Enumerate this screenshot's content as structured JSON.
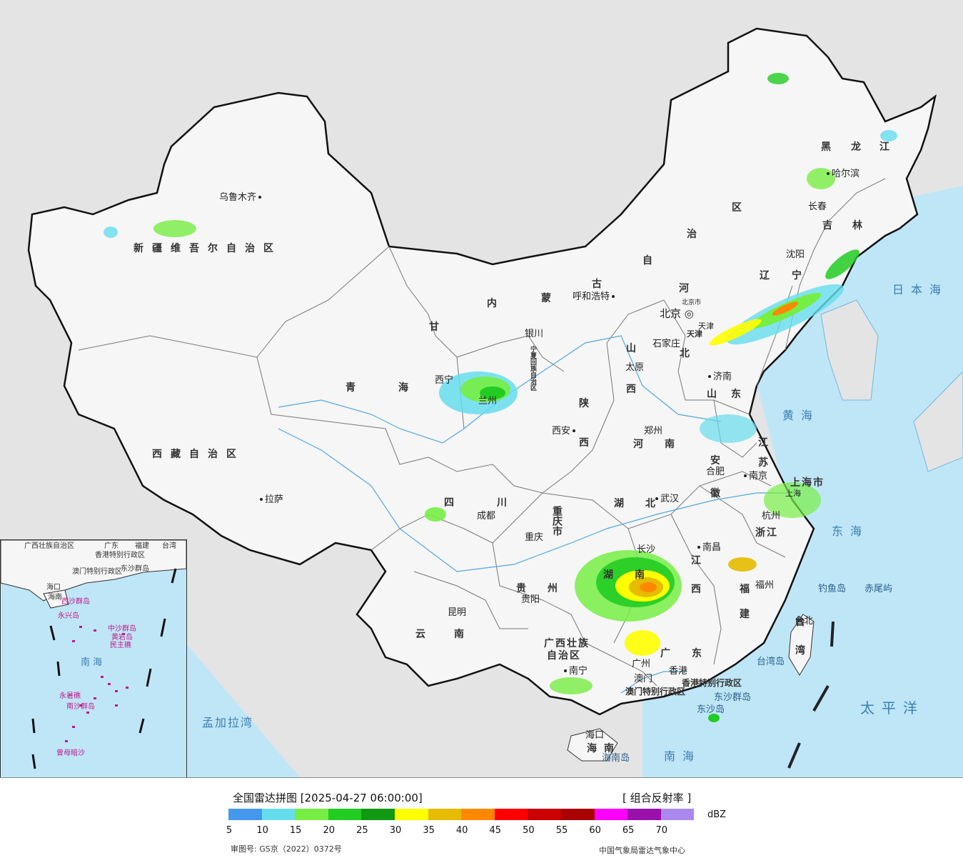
{
  "map": {
    "cities": [
      {
        "name": "乌鲁木齐",
        "key": "urumqi"
      },
      {
        "name": "拉萨",
        "key": "lhasa"
      },
      {
        "name": "西宁",
        "key": "xining"
      },
      {
        "name": "兰州",
        "key": "lanzhou"
      },
      {
        "name": "银川",
        "key": "yinchuan"
      },
      {
        "name": "呼和浩特",
        "key": "hohhot"
      },
      {
        "name": "北京",
        "key": "beijing"
      },
      {
        "name": "天津",
        "key": "tianjin"
      },
      {
        "name": "石家庄",
        "key": "shijiazhuang"
      },
      {
        "name": "太原",
        "key": "taiyuan"
      },
      {
        "name": "济南",
        "key": "jinan"
      },
      {
        "name": "郑州",
        "key": "zhengzhou"
      },
      {
        "name": "西安",
        "key": "xian"
      },
      {
        "name": "成都",
        "key": "chengdu"
      },
      {
        "name": "重庆",
        "key": "chongqing"
      },
      {
        "name": "武汉",
        "key": "wuhan"
      },
      {
        "name": "合肥",
        "key": "hefei"
      },
      {
        "name": "南京",
        "key": "nanjing"
      },
      {
        "name": "上海",
        "key": "shanghai"
      },
      {
        "name": "杭州",
        "key": "hangzhou"
      },
      {
        "name": "南昌",
        "key": "nanchang"
      },
      {
        "name": "长沙",
        "key": "changsha"
      },
      {
        "name": "福州",
        "key": "fuzhou"
      },
      {
        "name": "台北",
        "key": "taipei"
      },
      {
        "name": "贵阳",
        "key": "guiyang"
      },
      {
        "name": "昆明",
        "key": "kunming"
      },
      {
        "name": "南宁",
        "key": "nanning"
      },
      {
        "name": "广州",
        "key": "guangzhou"
      },
      {
        "name": "澳门",
        "key": "macau"
      },
      {
        "name": "香港",
        "key": "hongkong"
      },
      {
        "name": "海口",
        "key": "haikou"
      },
      {
        "name": "沈阳",
        "key": "shenyang"
      },
      {
        "name": "长春",
        "key": "changchun"
      },
      {
        "name": "哈尔滨",
        "key": "harbin"
      },
      {
        "name": "钓鱼岛",
        "key": "diaoyu"
      },
      {
        "name": "赤尾屿",
        "key": "chiwei"
      },
      {
        "name": "东沙群岛",
        "key": "dongsha"
      },
      {
        "name": "东沙岛",
        "key": "dongshadao"
      },
      {
        "name": "台湾岛",
        "key": "taiwandao"
      },
      {
        "name": "海南岛",
        "key": "hainandao"
      },
      {
        "name": "北京市",
        "key": "beijingshi"
      }
    ],
    "provinces": [
      "新疆维吾尔自治区",
      "西藏自治区",
      "青海",
      "甘",
      "内",
      "蒙",
      "古",
      "自",
      "治",
      "区",
      "四川",
      "云南",
      "贵州",
      "广西壮族",
      "自治区",
      "广东",
      "湖南",
      "湖北",
      "河南",
      "山东",
      "河",
      "北",
      "山",
      "西",
      "陕",
      "西",
      "安",
      "徽",
      "江",
      "苏",
      "浙江",
      "江",
      "西",
      "福",
      "建",
      "辽",
      "宁",
      "吉",
      "林",
      "黑",
      "龙",
      "江",
      "重庆市",
      "上海市",
      "天津",
      "台",
      "湾",
      "海南",
      "宁夏回族自治区",
      "香港特别行政区",
      "澳门特别行政区"
    ],
    "seas": [
      "日本海",
      "黄海",
      "东海",
      "太平洋",
      "南海",
      "孟加拉湾"
    ]
  },
  "inset": {
    "labels": [
      "广西壮族自治区",
      "广东",
      "福建",
      "台湾",
      "香港特别行政区",
      "澳门特别行政区",
      "东沙群岛",
      "海口",
      "海南",
      "西沙群岛",
      "永兴岛",
      "中沙群岛",
      "黄岩岛",
      "民主礁",
      "南海",
      "永暑礁",
      "南沙群岛",
      "曾母暗沙"
    ]
  },
  "footer": {
    "title": "全国雷达拼图 [2025-04-27 06:00:00]",
    "product": "[ 组合反射率 ]",
    "unit": "dBZ",
    "approval": "审图号: GS京（2022）0372号",
    "org": "中国气象局雷达气象中心"
  },
  "legend": {
    "colors": [
      "#4499ee",
      "#66dded",
      "#77ee44",
      "#22cc22",
      "#119911",
      "#ffff00",
      "#e6bb00",
      "#ff8800",
      "#ff0000",
      "#cc0000",
      "#aa0000",
      "#ff00ff",
      "#9911aa",
      "#aa88ee"
    ],
    "ticks": [
      "5",
      "10",
      "15",
      "20",
      "25",
      "30",
      "35",
      "40",
      "45",
      "50",
      "55",
      "60",
      "65",
      "70"
    ]
  }
}
